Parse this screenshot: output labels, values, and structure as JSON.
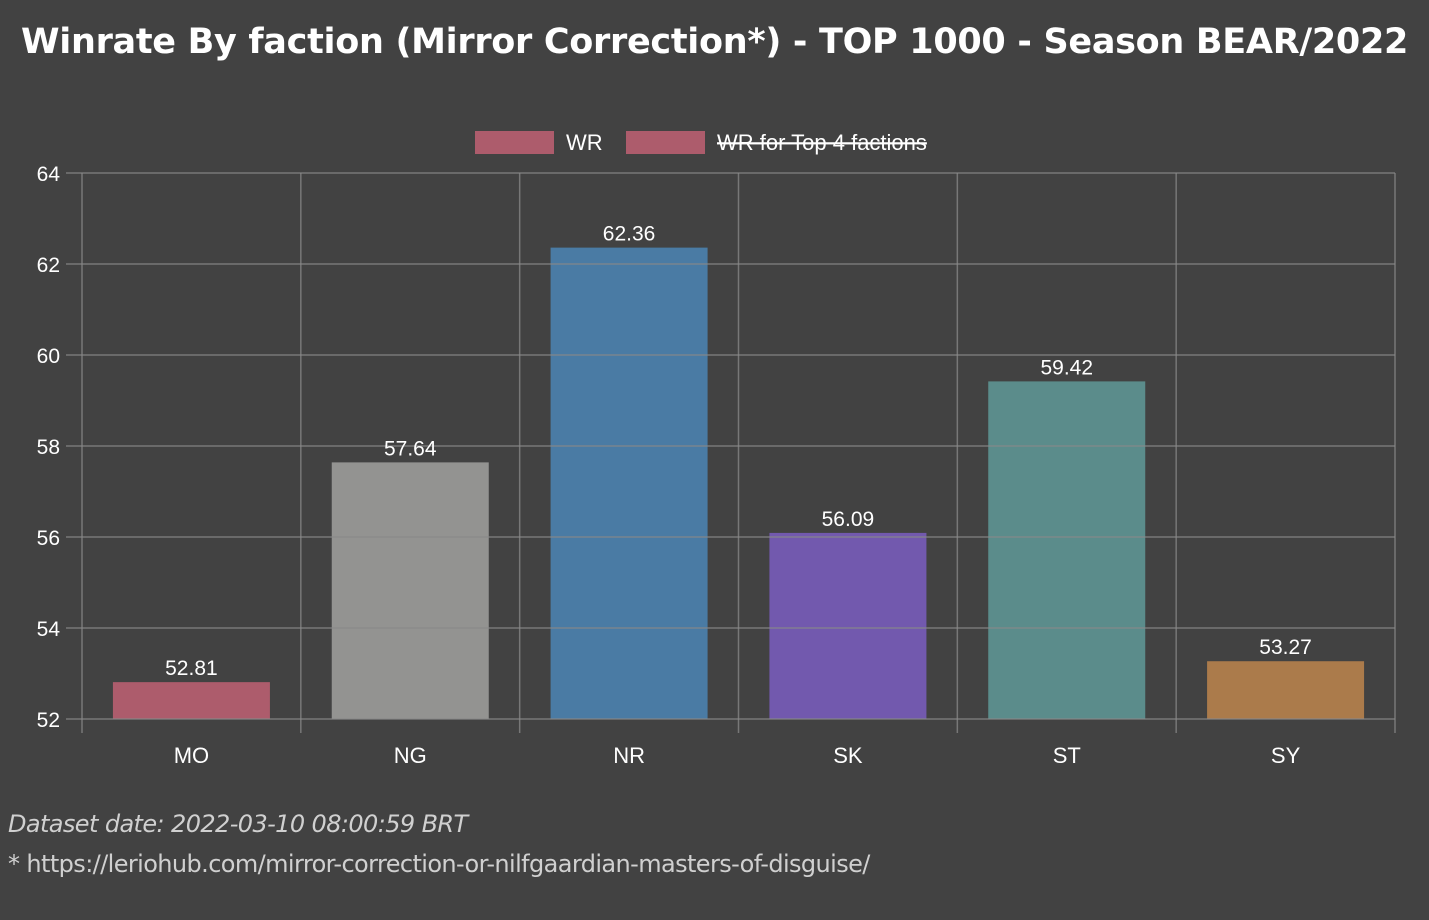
{
  "chart_data": {
    "type": "bar",
    "title": "Winrate By faction (Mirror Correction*) - TOP 1000 - Season BEAR/2022",
    "xlabel": "",
    "ylabel": "",
    "categories": [
      "MO",
      "NG",
      "NR",
      "SK",
      "ST",
      "SY"
    ],
    "values": [
      52.81,
      57.64,
      62.36,
      56.09,
      59.42,
      53.27
    ],
    "value_labels": [
      "52.81",
      "57.64",
      "62.36",
      "56.09",
      "59.42",
      "53.27"
    ],
    "colors": [
      "#ad5c6c",
      "#939391",
      "#4a7ba4",
      "#7259ae",
      "#5b8c8b",
      "#ab7b4b"
    ],
    "ylim": [
      52,
      64
    ],
    "yticks": [
      52,
      54,
      56,
      58,
      60,
      62,
      64
    ],
    "ytick_labels": [
      "52",
      "54",
      "56",
      "58",
      "60",
      "62",
      "64"
    ],
    "grid": true,
    "legend_position": "top-center",
    "legend": [
      {
        "label": "WR",
        "color": "#ad5c6c",
        "hidden": false
      },
      {
        "label": "WR for Top 4 factions",
        "color": "#ad5c6c",
        "hidden": true
      }
    ]
  },
  "footer": {
    "dataset_date": "Dataset date: 2022-03-10 08:00:59 BRT",
    "reference": "* https://leriohub.com/mirror-correction-or-nilfgaardian-masters-of-disguise/"
  },
  "theme": {
    "background": "#424242",
    "grid_color": "#8a8a8a",
    "text_color": "#ffffff"
  }
}
